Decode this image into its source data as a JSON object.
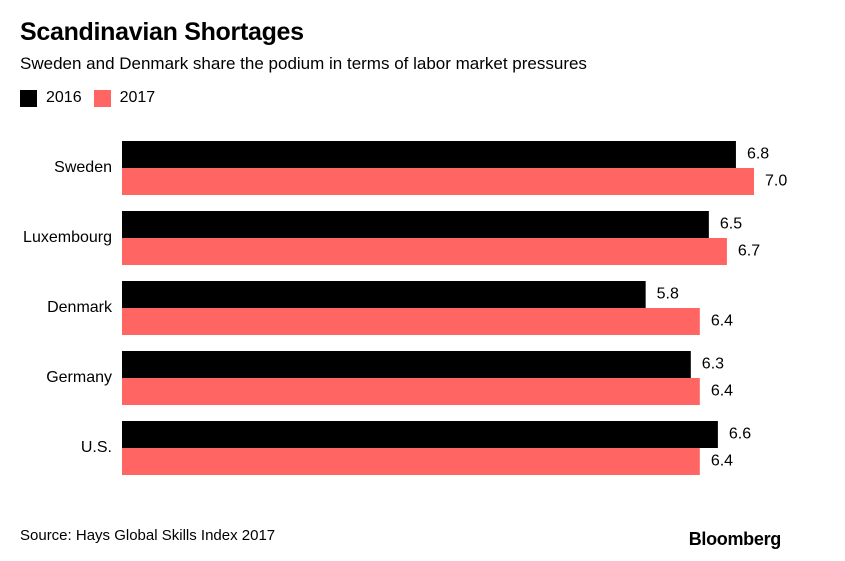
{
  "header": {
    "title": "Scandinavian Shortages",
    "subtitle": "Sweden and Denmark share the podium in terms of labor market pressures"
  },
  "legend": {
    "items": [
      {
        "label": "2016",
        "color": "#000000"
      },
      {
        "label": "2017",
        "color": "#ff6663"
      }
    ]
  },
  "chart_data": {
    "type": "bar",
    "orientation": "horizontal",
    "categories": [
      "Sweden",
      "Luxembourg",
      "Denmark",
      "Germany",
      "U.S."
    ],
    "series": [
      {
        "name": "2016",
        "color": "#000000",
        "values": [
          6.8,
          6.5,
          5.8,
          6.3,
          6.6
        ],
        "labels": [
          "6.8",
          "6.5",
          "5.8",
          "6.3",
          "6.6"
        ]
      },
      {
        "name": "2017",
        "color": "#ff6663",
        "values": [
          7.0,
          6.7,
          6.4,
          6.4,
          6.4
        ],
        "labels": [
          "7.0",
          "6.7",
          "6.4",
          "6.4",
          "6.4"
        ]
      }
    ],
    "title": "Scandinavian Shortages",
    "subtitle": "Sweden and Denmark share the podium in terms of labor market pressures",
    "xlim": [
      0,
      7.0
    ],
    "grid": false,
    "legend_position": "top-left"
  },
  "footer": {
    "source": "Source: Hays Global Skills Index 2017",
    "brand": "Bloomberg"
  }
}
